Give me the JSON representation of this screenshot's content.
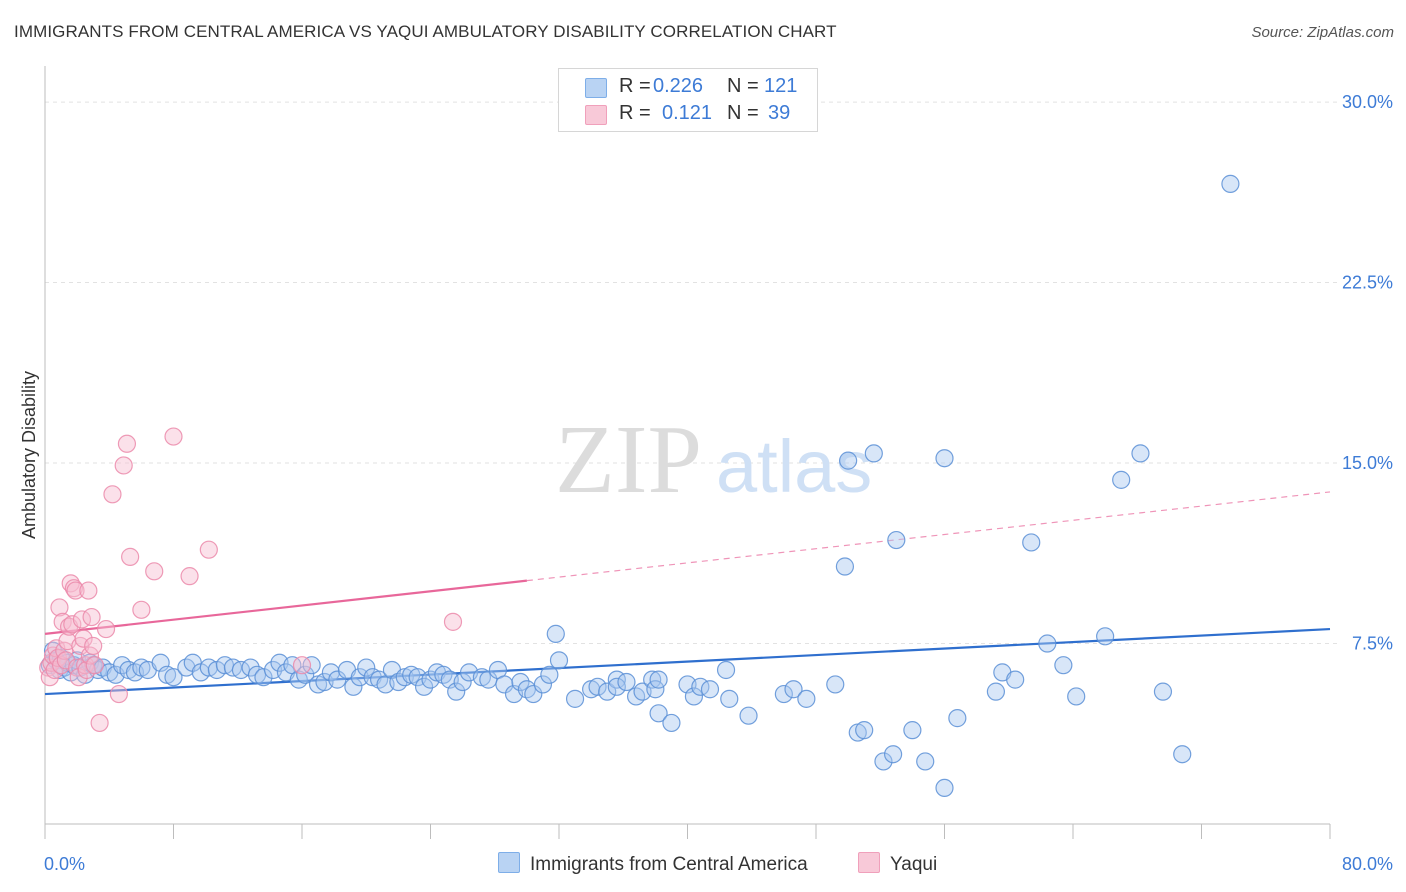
{
  "title": "IMMIGRANTS FROM CENTRAL AMERICA VS YAQUI AMBULATORY DISABILITY CORRELATION CHART",
  "source": "Source: ZipAtlas.com",
  "watermark": {
    "part1": "ZIP",
    "part2": "atlas"
  },
  "legend": {
    "rows": [
      {
        "r_label": "R =",
        "r_value": "0.226",
        "n_label": "N =",
        "n_value": "121",
        "color": "#7eaee8",
        "fill": "#b9d3f3"
      },
      {
        "r_label": "R =",
        "r_value": "0.121",
        "n_label": "N =",
        "n_value": "39",
        "color": "#f0a0bb",
        "fill": "#f8c9d8"
      }
    ]
  },
  "chart_data": {
    "type": "scatter",
    "title": "IMMIGRANTS FROM CENTRAL AMERICA VS YAQUI AMBULATORY DISABILITY CORRELATION CHART",
    "xlabel": "",
    "ylabel": "Ambulatory Disability",
    "xlim": [
      0,
      80
    ],
    "ylim": [
      0,
      31
    ],
    "x_tick_labels": [
      "0.0%",
      "80.0%"
    ],
    "y_ticks": [
      7.5,
      15.0,
      22.5,
      30.0
    ],
    "y_tick_labels": [
      "7.5%",
      "15.0%",
      "22.5%",
      "30.0%"
    ],
    "grid": true,
    "legend_position": "top-center",
    "series": [
      {
        "name": "Immigrants from Central America",
        "color": "#5b8fd6",
        "fill": "#a9c8ef",
        "trend": {
          "x": [
            0,
            80
          ],
          "y": [
            5.4,
            8.1
          ],
          "color": "#2f6fce"
        },
        "points": [
          [
            0.3,
            6.6
          ],
          [
            0.5,
            7.2
          ],
          [
            0.7,
            6.8
          ],
          [
            0.9,
            6.4
          ],
          [
            1.0,
            6.9
          ],
          [
            1.2,
            6.5
          ],
          [
            1.4,
            6.7
          ],
          [
            1.6,
            6.3
          ],
          [
            1.8,
            6.6
          ],
          [
            2.0,
            6.8
          ],
          [
            2.2,
            6.5
          ],
          [
            2.5,
            6.2
          ],
          [
            2.8,
            6.7
          ],
          [
            3.0,
            6.6
          ],
          [
            3.3,
            6.4
          ],
          [
            3.6,
            6.5
          ],
          [
            4.0,
            6.3
          ],
          [
            4.4,
            6.2
          ],
          [
            4.8,
            6.6
          ],
          [
            5.2,
            6.4
          ],
          [
            5.6,
            6.3
          ],
          [
            6.0,
            6.5
          ],
          [
            6.4,
            6.4
          ],
          [
            7.2,
            6.7
          ],
          [
            7.6,
            6.2
          ],
          [
            8.0,
            6.1
          ],
          [
            8.8,
            6.5
          ],
          [
            9.2,
            6.7
          ],
          [
            9.7,
            6.3
          ],
          [
            10.2,
            6.5
          ],
          [
            10.7,
            6.4
          ],
          [
            11.2,
            6.6
          ],
          [
            11.7,
            6.5
          ],
          [
            12.2,
            6.4
          ],
          [
            12.8,
            6.5
          ],
          [
            13.2,
            6.2
          ],
          [
            13.6,
            6.1
          ],
          [
            14.2,
            6.4
          ],
          [
            14.6,
            6.7
          ],
          [
            15.0,
            6.3
          ],
          [
            15.4,
            6.6
          ],
          [
            15.8,
            6.0
          ],
          [
            16.2,
            6.2
          ],
          [
            16.6,
            6.6
          ],
          [
            17.0,
            5.8
          ],
          [
            17.4,
            5.9
          ],
          [
            17.8,
            6.3
          ],
          [
            18.2,
            6.0
          ],
          [
            18.8,
            6.4
          ],
          [
            19.2,
            5.7
          ],
          [
            19.6,
            6.1
          ],
          [
            20.0,
            6.5
          ],
          [
            20.4,
            6.1
          ],
          [
            20.8,
            6.0
          ],
          [
            21.2,
            5.8
          ],
          [
            21.6,
            6.4
          ],
          [
            22.0,
            5.9
          ],
          [
            22.4,
            6.1
          ],
          [
            22.8,
            6.2
          ],
          [
            23.2,
            6.1
          ],
          [
            23.6,
            5.7
          ],
          [
            24.0,
            6.0
          ],
          [
            24.4,
            6.3
          ],
          [
            24.8,
            6.2
          ],
          [
            25.2,
            6.0
          ],
          [
            25.6,
            5.5
          ],
          [
            26.0,
            5.9
          ],
          [
            26.4,
            6.3
          ],
          [
            27.2,
            6.1
          ],
          [
            27.6,
            6.0
          ],
          [
            28.2,
            6.4
          ],
          [
            28.6,
            5.8
          ],
          [
            29.2,
            5.4
          ],
          [
            29.6,
            5.9
          ],
          [
            30.0,
            5.6
          ],
          [
            30.4,
            5.4
          ],
          [
            31.0,
            5.8
          ],
          [
            31.4,
            6.2
          ],
          [
            31.8,
            7.9
          ],
          [
            32.0,
            6.8
          ],
          [
            33.0,
            5.2
          ],
          [
            34.0,
            5.6
          ],
          [
            34.4,
            5.7
          ],
          [
            35.0,
            5.5
          ],
          [
            35.6,
            6.0
          ],
          [
            35.6,
            5.7
          ],
          [
            36.2,
            5.9
          ],
          [
            36.8,
            5.3
          ],
          [
            37.2,
            5.5
          ],
          [
            37.8,
            6.0
          ],
          [
            38.0,
            5.6
          ],
          [
            38.2,
            4.6
          ],
          [
            38.2,
            6.0
          ],
          [
            39.0,
            4.2
          ],
          [
            40.0,
            5.8
          ],
          [
            40.4,
            5.3
          ],
          [
            40.8,
            5.7
          ],
          [
            41.4,
            5.6
          ],
          [
            42.4,
            6.4
          ],
          [
            42.6,
            5.2
          ],
          [
            43.8,
            4.5
          ],
          [
            46.0,
            5.4
          ],
          [
            46.6,
            5.6
          ],
          [
            47.4,
            5.2
          ],
          [
            49.2,
            5.8
          ],
          [
            49.8,
            10.7
          ],
          [
            50.0,
            15.1
          ],
          [
            50.6,
            3.8
          ],
          [
            51.0,
            3.9
          ],
          [
            51.6,
            15.4
          ],
          [
            52.2,
            2.6
          ],
          [
            52.8,
            2.9
          ],
          [
            53.0,
            11.8
          ],
          [
            54.0,
            3.9
          ],
          [
            54.8,
            2.6
          ],
          [
            56.0,
            1.5
          ],
          [
            56.0,
            15.2
          ],
          [
            56.8,
            4.4
          ],
          [
            59.2,
            5.5
          ],
          [
            59.6,
            6.3
          ],
          [
            60.4,
            6.0
          ],
          [
            61.4,
            11.7
          ],
          [
            62.4,
            7.5
          ],
          [
            63.4,
            6.6
          ],
          [
            64.2,
            5.3
          ],
          [
            66.0,
            7.8
          ],
          [
            67.0,
            14.3
          ],
          [
            68.2,
            15.4
          ],
          [
            69.6,
            5.5
          ],
          [
            70.8,
            2.9
          ],
          [
            73.8,
            26.6
          ]
        ]
      },
      {
        "name": "Yaqui",
        "color": "#eb8aaa",
        "fill": "#f6bdd0",
        "trend": {
          "x": [
            0,
            80
          ],
          "y": [
            7.9,
            13.8
          ],
          "solid_until": 30,
          "color": "#e8679a"
        },
        "points": [
          [
            0.2,
            6.5
          ],
          [
            0.3,
            6.1
          ],
          [
            0.4,
            6.7
          ],
          [
            0.5,
            7.0
          ],
          [
            0.6,
            6.4
          ],
          [
            0.7,
            7.3
          ],
          [
            0.8,
            6.9
          ],
          [
            0.9,
            9.0
          ],
          [
            1.0,
            6.6
          ],
          [
            1.1,
            8.4
          ],
          [
            1.2,
            7.2
          ],
          [
            1.3,
            6.8
          ],
          [
            1.4,
            7.6
          ],
          [
            1.5,
            8.2
          ],
          [
            1.6,
            10.0
          ],
          [
            1.7,
            8.3
          ],
          [
            1.8,
            9.8
          ],
          [
            1.9,
            9.7
          ],
          [
            2.0,
            6.5
          ],
          [
            2.1,
            6.1
          ],
          [
            2.2,
            7.4
          ],
          [
            2.3,
            8.5
          ],
          [
            2.4,
            7.7
          ],
          [
            2.5,
            6.6
          ],
          [
            2.6,
            6.4
          ],
          [
            2.7,
            9.7
          ],
          [
            2.8,
            7.0
          ],
          [
            2.9,
            8.6
          ],
          [
            3.0,
            7.4
          ],
          [
            3.1,
            6.6
          ],
          [
            3.4,
            4.2
          ],
          [
            3.8,
            8.1
          ],
          [
            4.2,
            13.7
          ],
          [
            4.6,
            5.4
          ],
          [
            4.9,
            14.9
          ],
          [
            5.1,
            15.8
          ],
          [
            5.3,
            11.1
          ],
          [
            6.0,
            8.9
          ],
          [
            6.8,
            10.5
          ],
          [
            8.0,
            16.1
          ],
          [
            9.0,
            10.3
          ],
          [
            10.2,
            11.4
          ],
          [
            16.0,
            6.6
          ],
          [
            25.4,
            8.4
          ]
        ]
      }
    ]
  },
  "bottom_legend": [
    {
      "label": "Immigrants from Central America"
    },
    {
      "label": "Yaqui"
    }
  ]
}
